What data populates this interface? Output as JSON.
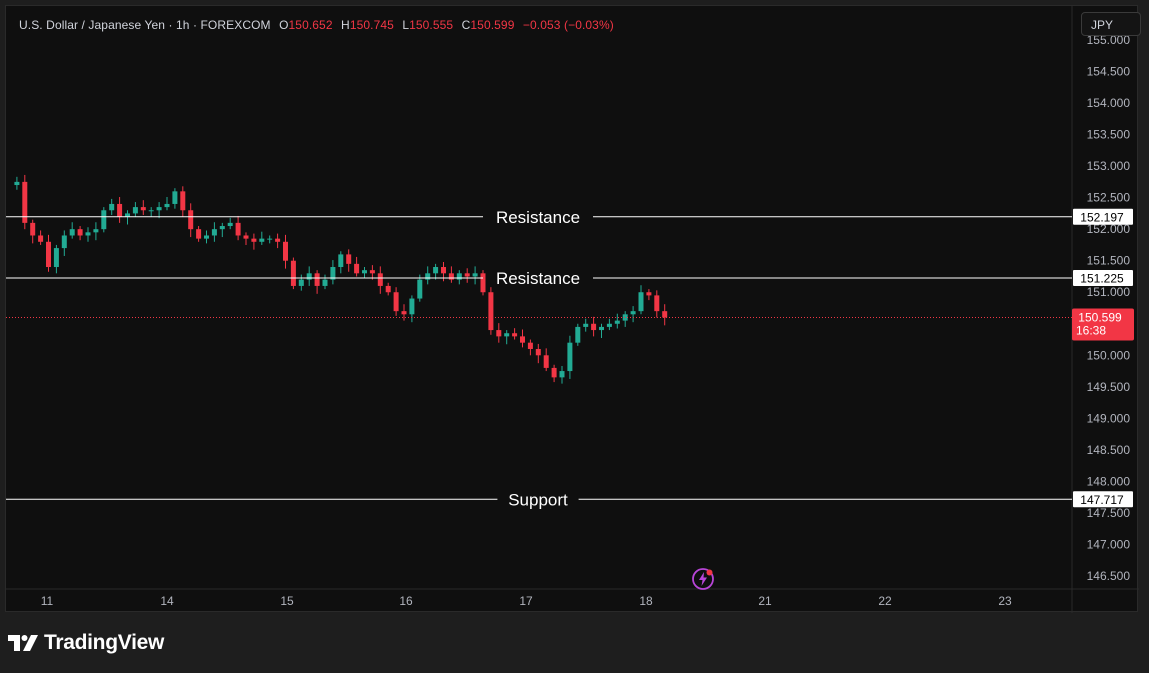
{
  "legend": {
    "symbol": "U.S. Dollar / Japanese Yen · 1h · FOREXCOM",
    "open_label": "O",
    "open": "150.652",
    "high_label": "H",
    "high": "150.745",
    "low_label": "L",
    "low": "150.555",
    "close_label": "C",
    "close": "150.599",
    "change": "−0.053 (−0.03%)"
  },
  "currency": "JPY",
  "countdown": "16:38",
  "brand": "TradingView",
  "colors": {
    "up": "#22ab94",
    "down": "#f23645",
    "price_badge": "#f23645",
    "level_line": "#ffffff",
    "background": "#0f0f0f"
  },
  "icons": {
    "bolt": "lightning-bolt-icon",
    "logo": "tradingview-logo-icon"
  },
  "chart_data": {
    "type": "candlestick",
    "title": "U.S. Dollar / Japanese Yen · 1h · FOREXCOM",
    "ylim": [
      146.3,
      155.2
    ],
    "y_ticks": [
      "155.000",
      "154.500",
      "154.000",
      "153.500",
      "153.000",
      "152.500",
      "152.000",
      "151.500",
      "151.000",
      "150.500",
      "150.000",
      "149.500",
      "149.000",
      "148.500",
      "148.000",
      "147.500",
      "147.000",
      "146.500"
    ],
    "x_ticks": [
      "11",
      "14",
      "15",
      "16",
      "17",
      "18",
      "21",
      "22",
      "23"
    ],
    "levels": [
      {
        "label": "Resistance",
        "value": 152.197,
        "value_label": "152.197"
      },
      {
        "label": "Resistance",
        "value": 151.225,
        "value_label": "151.225"
      },
      {
        "label": "Support",
        "value": 147.717,
        "value_label": "147.717"
      }
    ],
    "last_price": 150.599,
    "last_price_label": "150.599",
    "price_path": [
      152.7,
      152.75,
      152.1,
      151.9,
      151.8,
      151.4,
      151.7,
      151.9,
      152.0,
      151.9,
      151.95,
      152.0,
      152.3,
      152.4,
      152.2,
      152.25,
      152.35,
      152.3,
      152.3,
      152.35,
      152.4,
      152.6,
      152.3,
      152.0,
      151.85,
      151.9,
      152.0,
      152.05,
      152.1,
      151.9,
      151.85,
      151.8,
      151.85,
      151.85,
      151.8,
      151.5,
      151.1,
      151.2,
      151.3,
      151.1,
      151.2,
      151.4,
      151.6,
      151.45,
      151.3,
      151.35,
      151.3,
      151.1,
      151.0,
      150.7,
      150.65,
      150.9,
      151.2,
      151.3,
      151.4,
      151.3,
      151.2,
      151.3,
      151.25,
      151.3,
      151.0,
      150.4,
      150.3,
      150.35,
      150.3,
      150.2,
      150.1,
      150.0,
      149.8,
      149.65,
      149.75,
      150.2,
      150.45,
      150.5,
      150.4,
      150.45,
      150.5,
      150.55,
      150.65,
      150.7,
      151.0,
      150.95,
      150.7,
      150.6
    ]
  }
}
